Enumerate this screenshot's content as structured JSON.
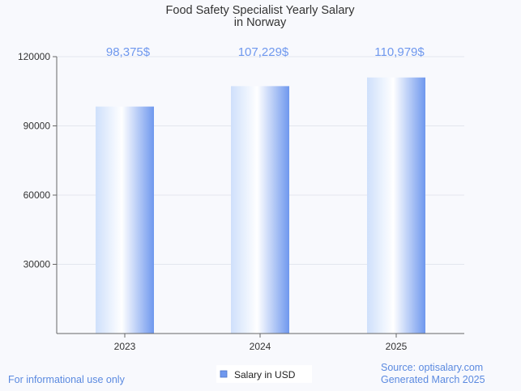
{
  "chart_data": {
    "type": "bar",
    "title_lines": [
      "Food Safety Specialist Yearly Salary",
      "in Norway"
    ],
    "categories": [
      "2023",
      "2024",
      "2025"
    ],
    "series": [
      {
        "name": "Salary in USD",
        "values": [
          98375,
          107229,
          110979
        ]
      }
    ],
    "data_labels": [
      "98,375$",
      "107,229$",
      "110,979$"
    ],
    "y_ticks": [
      30000,
      60000,
      90000,
      120000
    ],
    "ylim": [
      0,
      120000
    ],
    "grid": true,
    "legend_position": "bottom-center"
  },
  "footer": {
    "left_note": "For informational use only",
    "source": "Source: optisalary.com",
    "generated": "Generated March 2025"
  },
  "colors": {
    "bar_edge": "#6f98ee",
    "bar_mid": "#ffffff",
    "bar_light": "#cfe0fb",
    "data_label": "#6f98ee",
    "footer_text": "#5b8ae0",
    "grid": "#e3e6ee",
    "axis": "#666666",
    "tick_text": "#333333",
    "title_text": "#333333"
  }
}
